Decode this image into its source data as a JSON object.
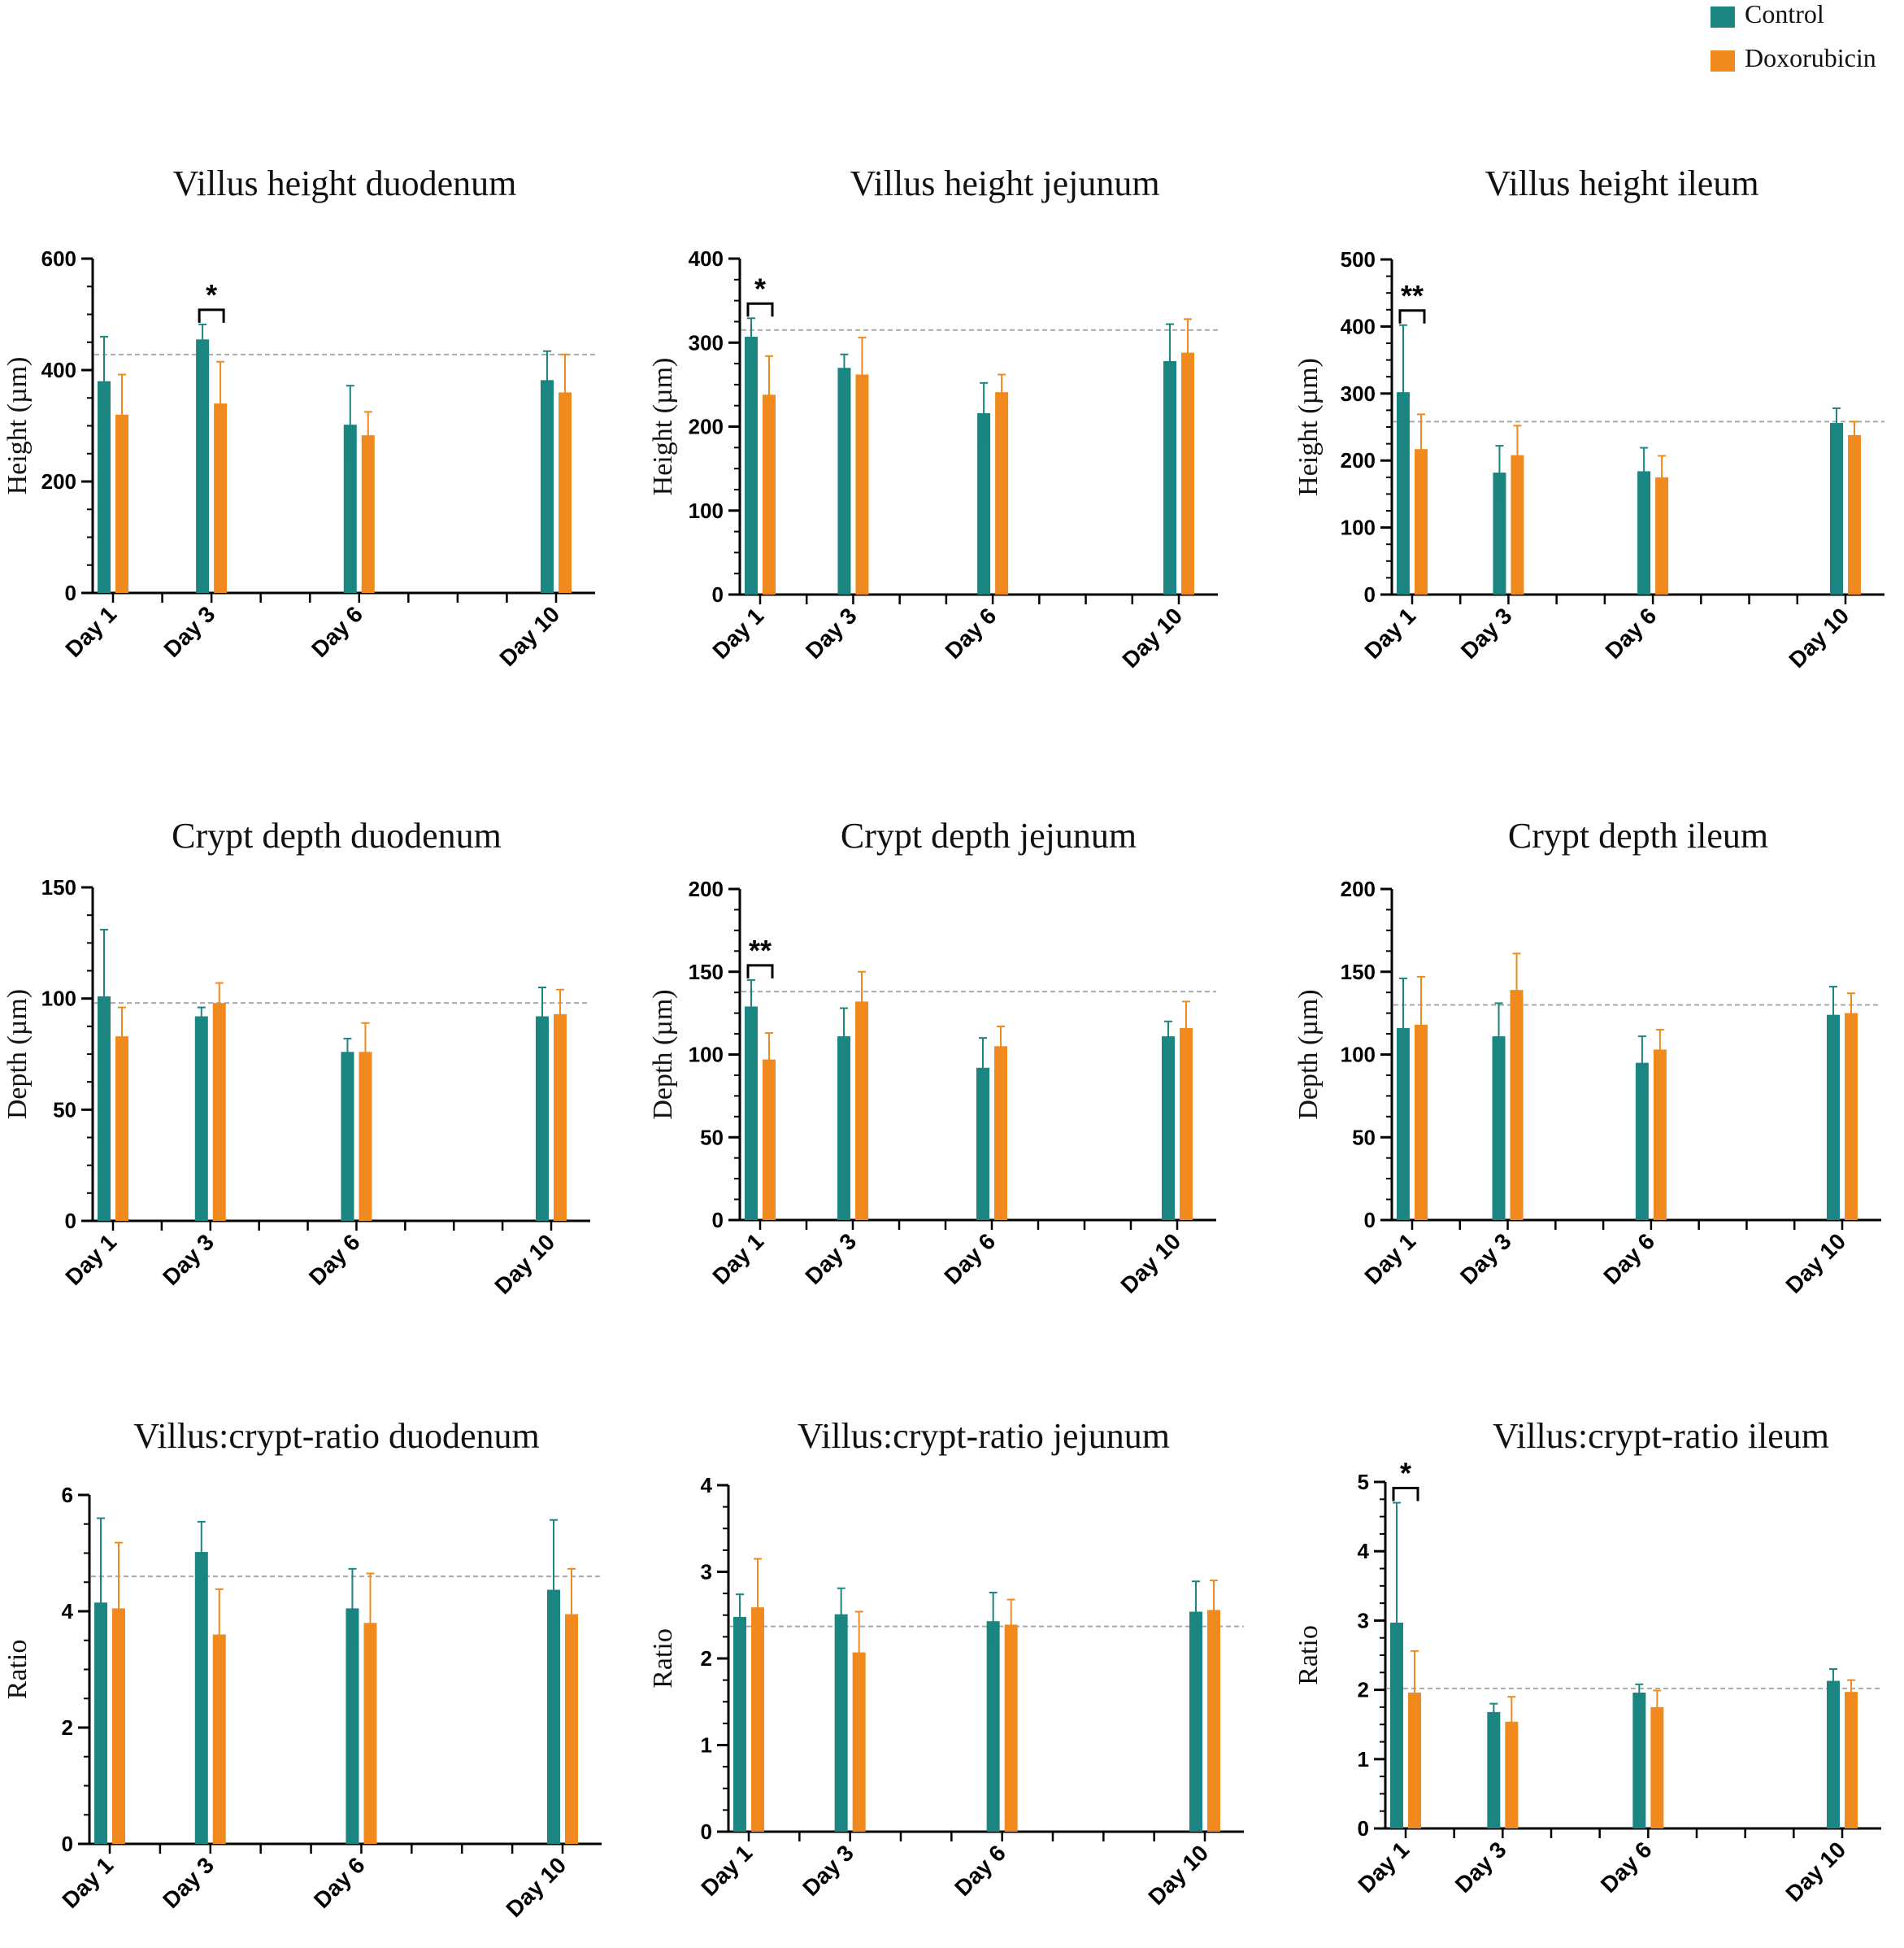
{
  "legend": {
    "entries": [
      {
        "name": "Control",
        "color": "#1b8582"
      },
      {
        "name": "Doxorubicin",
        "color": "#f08a1e"
      }
    ]
  },
  "chart_data": [
    {
      "type": "bar",
      "title": "Villus height duodenum",
      "ylabel": "Height (µm)",
      "ylim": [
        0,
        600
      ],
      "yticks": [
        0,
        200,
        400,
        600
      ],
      "categories": [
        "Day 1",
        "Day 3",
        "Day 6",
        "Day 10"
      ],
      "day_values": [
        1,
        3,
        6,
        10
      ],
      "reference_line": 428,
      "series": [
        {
          "name": "Control",
          "values": [
            380,
            455,
            302,
            382
          ],
          "errors": [
            80,
            27,
            70,
            52
          ]
        },
        {
          "name": "Doxorubicin",
          "values": [
            320,
            340,
            283,
            360
          ],
          "errors": [
            72,
            75,
            42,
            68
          ]
        }
      ],
      "significance": [
        {
          "category": "Day 3",
          "label": "*"
        }
      ]
    },
    {
      "type": "bar",
      "title": "Villus height jejunum",
      "ylabel": "Height (µm)",
      "ylim": [
        0,
        400
      ],
      "yticks": [
        0,
        100,
        200,
        300,
        400
      ],
      "categories": [
        "Day 1",
        "Day 3",
        "Day 6",
        "Day 10"
      ],
      "day_values": [
        1,
        3,
        6,
        10
      ],
      "reference_line": 315,
      "series": [
        {
          "name": "Control",
          "values": [
            307,
            270,
            216,
            278
          ],
          "errors": [
            22,
            16,
            36,
            44
          ]
        },
        {
          "name": "Doxorubicin",
          "values": [
            238,
            262,
            241,
            288
          ],
          "errors": [
            46,
            44,
            21,
            40
          ]
        }
      ],
      "significance": [
        {
          "category": "Day 1",
          "label": "*"
        }
      ]
    },
    {
      "type": "bar",
      "title": "Villus height ileum",
      "ylabel": "Height (µm)",
      "ylim": [
        0,
        500
      ],
      "yticks": [
        0,
        100,
        200,
        300,
        400,
        500
      ],
      "categories": [
        "Day 1",
        "Day 3",
        "Day 6",
        "Day 10"
      ],
      "day_values": [
        1,
        3,
        6,
        10
      ],
      "reference_line": 258,
      "series": [
        {
          "name": "Control",
          "values": [
            302,
            182,
            184,
            256
          ],
          "errors": [
            100,
            40,
            35,
            22
          ]
        },
        {
          "name": "Doxorubicin",
          "values": [
            217,
            208,
            175,
            238
          ],
          "errors": [
            52,
            44,
            32,
            20
          ]
        }
      ],
      "significance": [
        {
          "category": "Day 1",
          "label": "**"
        }
      ]
    },
    {
      "type": "bar",
      "title": "Crypt depth duodenum",
      "ylabel": "Depth (µm)",
      "ylim": [
        0,
        150
      ],
      "yticks": [
        0,
        50,
        100,
        150
      ],
      "categories": [
        "Day 1",
        "Day 3",
        "Day 6",
        "Day 10"
      ],
      "day_values": [
        1,
        3,
        6,
        10
      ],
      "reference_line": 98,
      "series": [
        {
          "name": "Control",
          "values": [
            101,
            92,
            76,
            92
          ],
          "errors": [
            30,
            4,
            6,
            13
          ]
        },
        {
          "name": "Doxorubicin",
          "values": [
            83,
            98,
            76,
            93
          ],
          "errors": [
            13,
            9,
            13,
            11
          ]
        }
      ],
      "significance": []
    },
    {
      "type": "bar",
      "title": "Crypt depth jejunum",
      "ylabel": "Depth (µm)",
      "ylim": [
        0,
        200
      ],
      "yticks": [
        0,
        50,
        100,
        150,
        200
      ],
      "categories": [
        "Day 1",
        "Day 3",
        "Day 6",
        "Day 10"
      ],
      "day_values": [
        1,
        3,
        6,
        10
      ],
      "reference_line": 138,
      "series": [
        {
          "name": "Control",
          "values": [
            129,
            111,
            92,
            111
          ],
          "errors": [
            16,
            17,
            18,
            9
          ]
        },
        {
          "name": "Doxorubicin",
          "values": [
            97,
            132,
            105,
            116
          ],
          "errors": [
            16,
            18,
            12,
            16
          ]
        }
      ],
      "significance": [
        {
          "category": "Day 1",
          "label": "**"
        }
      ]
    },
    {
      "type": "bar",
      "title": "Crypt depth ileum",
      "ylabel": "Depth (µm)",
      "ylim": [
        0,
        200
      ],
      "yticks": [
        0,
        50,
        100,
        150,
        200
      ],
      "categories": [
        "Day 1",
        "Day 3",
        "Day 6",
        "Day 10"
      ],
      "day_values": [
        1,
        3,
        6,
        10
      ],
      "reference_line": 130,
      "series": [
        {
          "name": "Control",
          "values": [
            116,
            111,
            95,
            124
          ],
          "errors": [
            30,
            20,
            16,
            17
          ]
        },
        {
          "name": "Doxorubicin",
          "values": [
            118,
            139,
            103,
            125
          ],
          "errors": [
            29,
            22,
            12,
            12
          ]
        }
      ],
      "significance": []
    },
    {
      "type": "bar",
      "title": "Villus:crypt-ratio duodenum",
      "ylabel": "Ratio",
      "ylim": [
        0,
        6
      ],
      "yticks": [
        0,
        2,
        4,
        6
      ],
      "categories": [
        "Day 1",
        "Day 3",
        "Day 6",
        "Day 10"
      ],
      "day_values": [
        1,
        3,
        6,
        10
      ],
      "reference_line": 4.6,
      "series": [
        {
          "name": "Control",
          "values": [
            4.15,
            5.02,
            4.05,
            4.37
          ],
          "errors": [
            1.45,
            0.52,
            0.68,
            1.2
          ]
        },
        {
          "name": "Doxorubicin",
          "values": [
            4.05,
            3.6,
            3.8,
            3.95
          ],
          "errors": [
            1.13,
            0.78,
            0.85,
            0.78
          ]
        }
      ],
      "significance": []
    },
    {
      "type": "bar",
      "title": "Villus:crypt-ratio jejunum",
      "ylabel": "Ratio",
      "ylim": [
        0,
        4
      ],
      "yticks": [
        0,
        1,
        2,
        3,
        4
      ],
      "categories": [
        "Day 1",
        "Day 3",
        "Day 6",
        "Day 10"
      ],
      "day_values": [
        1,
        3,
        6,
        10
      ],
      "reference_line": 2.37,
      "series": [
        {
          "name": "Control",
          "values": [
            2.48,
            2.51,
            2.43,
            2.54
          ],
          "errors": [
            0.26,
            0.3,
            0.33,
            0.35
          ]
        },
        {
          "name": "Doxorubicin",
          "values": [
            2.59,
            2.07,
            2.39,
            2.56
          ],
          "errors": [
            0.56,
            0.47,
            0.29,
            0.34
          ]
        }
      ],
      "significance": []
    },
    {
      "type": "bar",
      "title": "Villus:crypt-ratio ileum",
      "ylabel": "Ratio",
      "ylim": [
        0,
        5
      ],
      "yticks": [
        0,
        1,
        2,
        3,
        4,
        5
      ],
      "categories": [
        "Day 1",
        "Day 3",
        "Day 6",
        "Day 10"
      ],
      "day_values": [
        1,
        3,
        6,
        10
      ],
      "reference_line": 2.02,
      "series": [
        {
          "name": "Control",
          "values": [
            2.97,
            1.68,
            1.96,
            2.13
          ],
          "errors": [
            1.73,
            0.12,
            0.12,
            0.17
          ]
        },
        {
          "name": "Doxorubicin",
          "values": [
            1.96,
            1.54,
            1.75,
            1.97
          ],
          "errors": [
            0.6,
            0.36,
            0.24,
            0.17
          ]
        }
      ],
      "significance": [
        {
          "category": "Day 1",
          "label": "*"
        }
      ]
    }
  ]
}
